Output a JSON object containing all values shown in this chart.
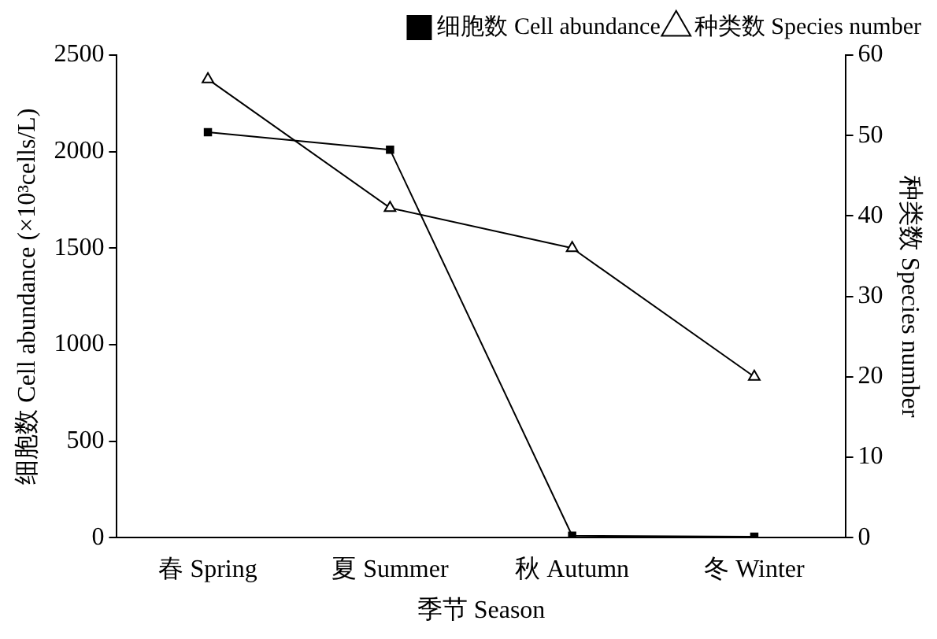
{
  "chart_data": {
    "type": "line",
    "xlabel": "季节 Season",
    "ylabel": "细胞数 Cell abundance (×10³cells/L)",
    "y2label": "种类数 Species number",
    "categories": [
      "春 Spring",
      "夏 Summer",
      "秋 Autumn",
      "冬 Winter"
    ],
    "series": [
      {
        "name": "细胞数 Cell abundance",
        "color": "#000000",
        "marker": "square",
        "values": [
          2100,
          2010,
          10,
          5
        ]
      },
      {
        "name": "种类数 Species number",
        "color": "#000000",
        "marker": "triangle",
        "axis": "y2",
        "values": [
          57,
          41,
          36,
          20
        ]
      }
    ],
    "ylim": [
      0,
      2500
    ],
    "yticks": [
      0,
      500,
      1000,
      1500,
      2000,
      2500
    ],
    "y2lim": [
      0,
      60
    ],
    "y2ticks": [
      0,
      10,
      20,
      30,
      40,
      50,
      60
    ],
    "legend": "top right",
    "grid": false,
    "line_style": "solid"
  }
}
